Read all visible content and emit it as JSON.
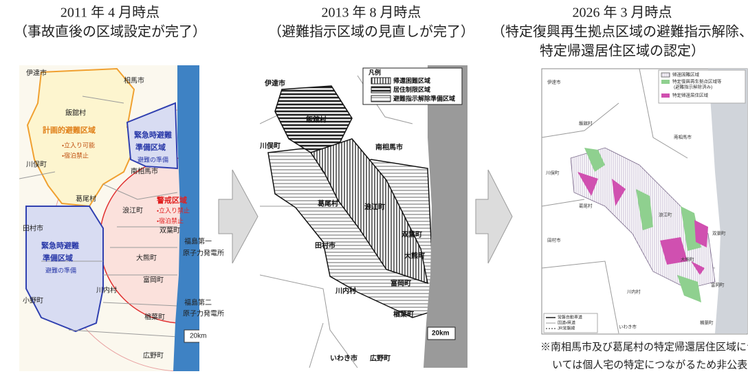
{
  "panels": [
    {
      "date": "2011 年 4 月時点",
      "caption": [
        "（事故直後の区域設定が完了）"
      ],
      "map": {
        "labels": [
          "伊達市",
          "相馬市",
          "飯舘村",
          "計画的避難区域",
          "・立入り可能",
          "・宿泊禁止",
          "緊急時避難",
          "準備区域",
          "避難の準備",
          "川俣町",
          "南相馬市",
          "葛尾村",
          "警戒区域",
          "・立入り禁止",
          "・宿泊禁止",
          "浪江町",
          "田村市",
          "緊急時避難",
          "準備区域",
          "避難の準備",
          "双葉町",
          "福島第一",
          "原子力発電所",
          "大熊町",
          "富岡町",
          "川内村",
          "小野町",
          "福島第二",
          "原子力発電所",
          "楢葉町",
          "広野町",
          "20km"
        ]
      }
    },
    {
      "date": "2013 年 8 月時点",
      "caption": [
        "（避難指示区域の見直しが完了）"
      ],
      "map": {
        "legend": {
          "title": "凡例",
          "items": [
            "帰還困難区域",
            "居住制限区域",
            "避難指示解除準備区域"
          ]
        },
        "labels": [
          "伊達市",
          "飯舘村",
          "川俣町",
          "南相馬市",
          "葛尾村",
          "浪江町",
          "田村市",
          "双葉町",
          "大熊町",
          "富岡町",
          "川内村",
          "楢葉町",
          "いわき市",
          "広野町",
          "20km"
        ]
      }
    },
    {
      "date": "2026 年 3 月時点",
      "caption": [
        "（特定復興再生拠点区域の避難指示解除、",
        "特定帰還居住区域の認定）"
      ],
      "map": {
        "legend": {
          "items": [
            "帰還困難区域",
            "特定復興再生拠点区域等",
            "(避難指示解除済み)",
            "特定帰還居住区域"
          ]
        },
        "labels": [
          "伊達市",
          "飯舘村",
          "南相馬市",
          "川俣町",
          "葛尾村",
          "浪江町",
          "田村市",
          "双葉町",
          "大熊町",
          "川内村",
          "富岡町",
          "楢葉町",
          "いわき市"
        ],
        "road_legend": [
          "常磐自動車道",
          "国道・県道",
          "JR常磐線"
        ]
      }
    }
  ],
  "note": [
    "※南相馬市及び葛尾村の特定帰還居住区域につ",
    "いては個人宅の特定につながるため非公表"
  ]
}
